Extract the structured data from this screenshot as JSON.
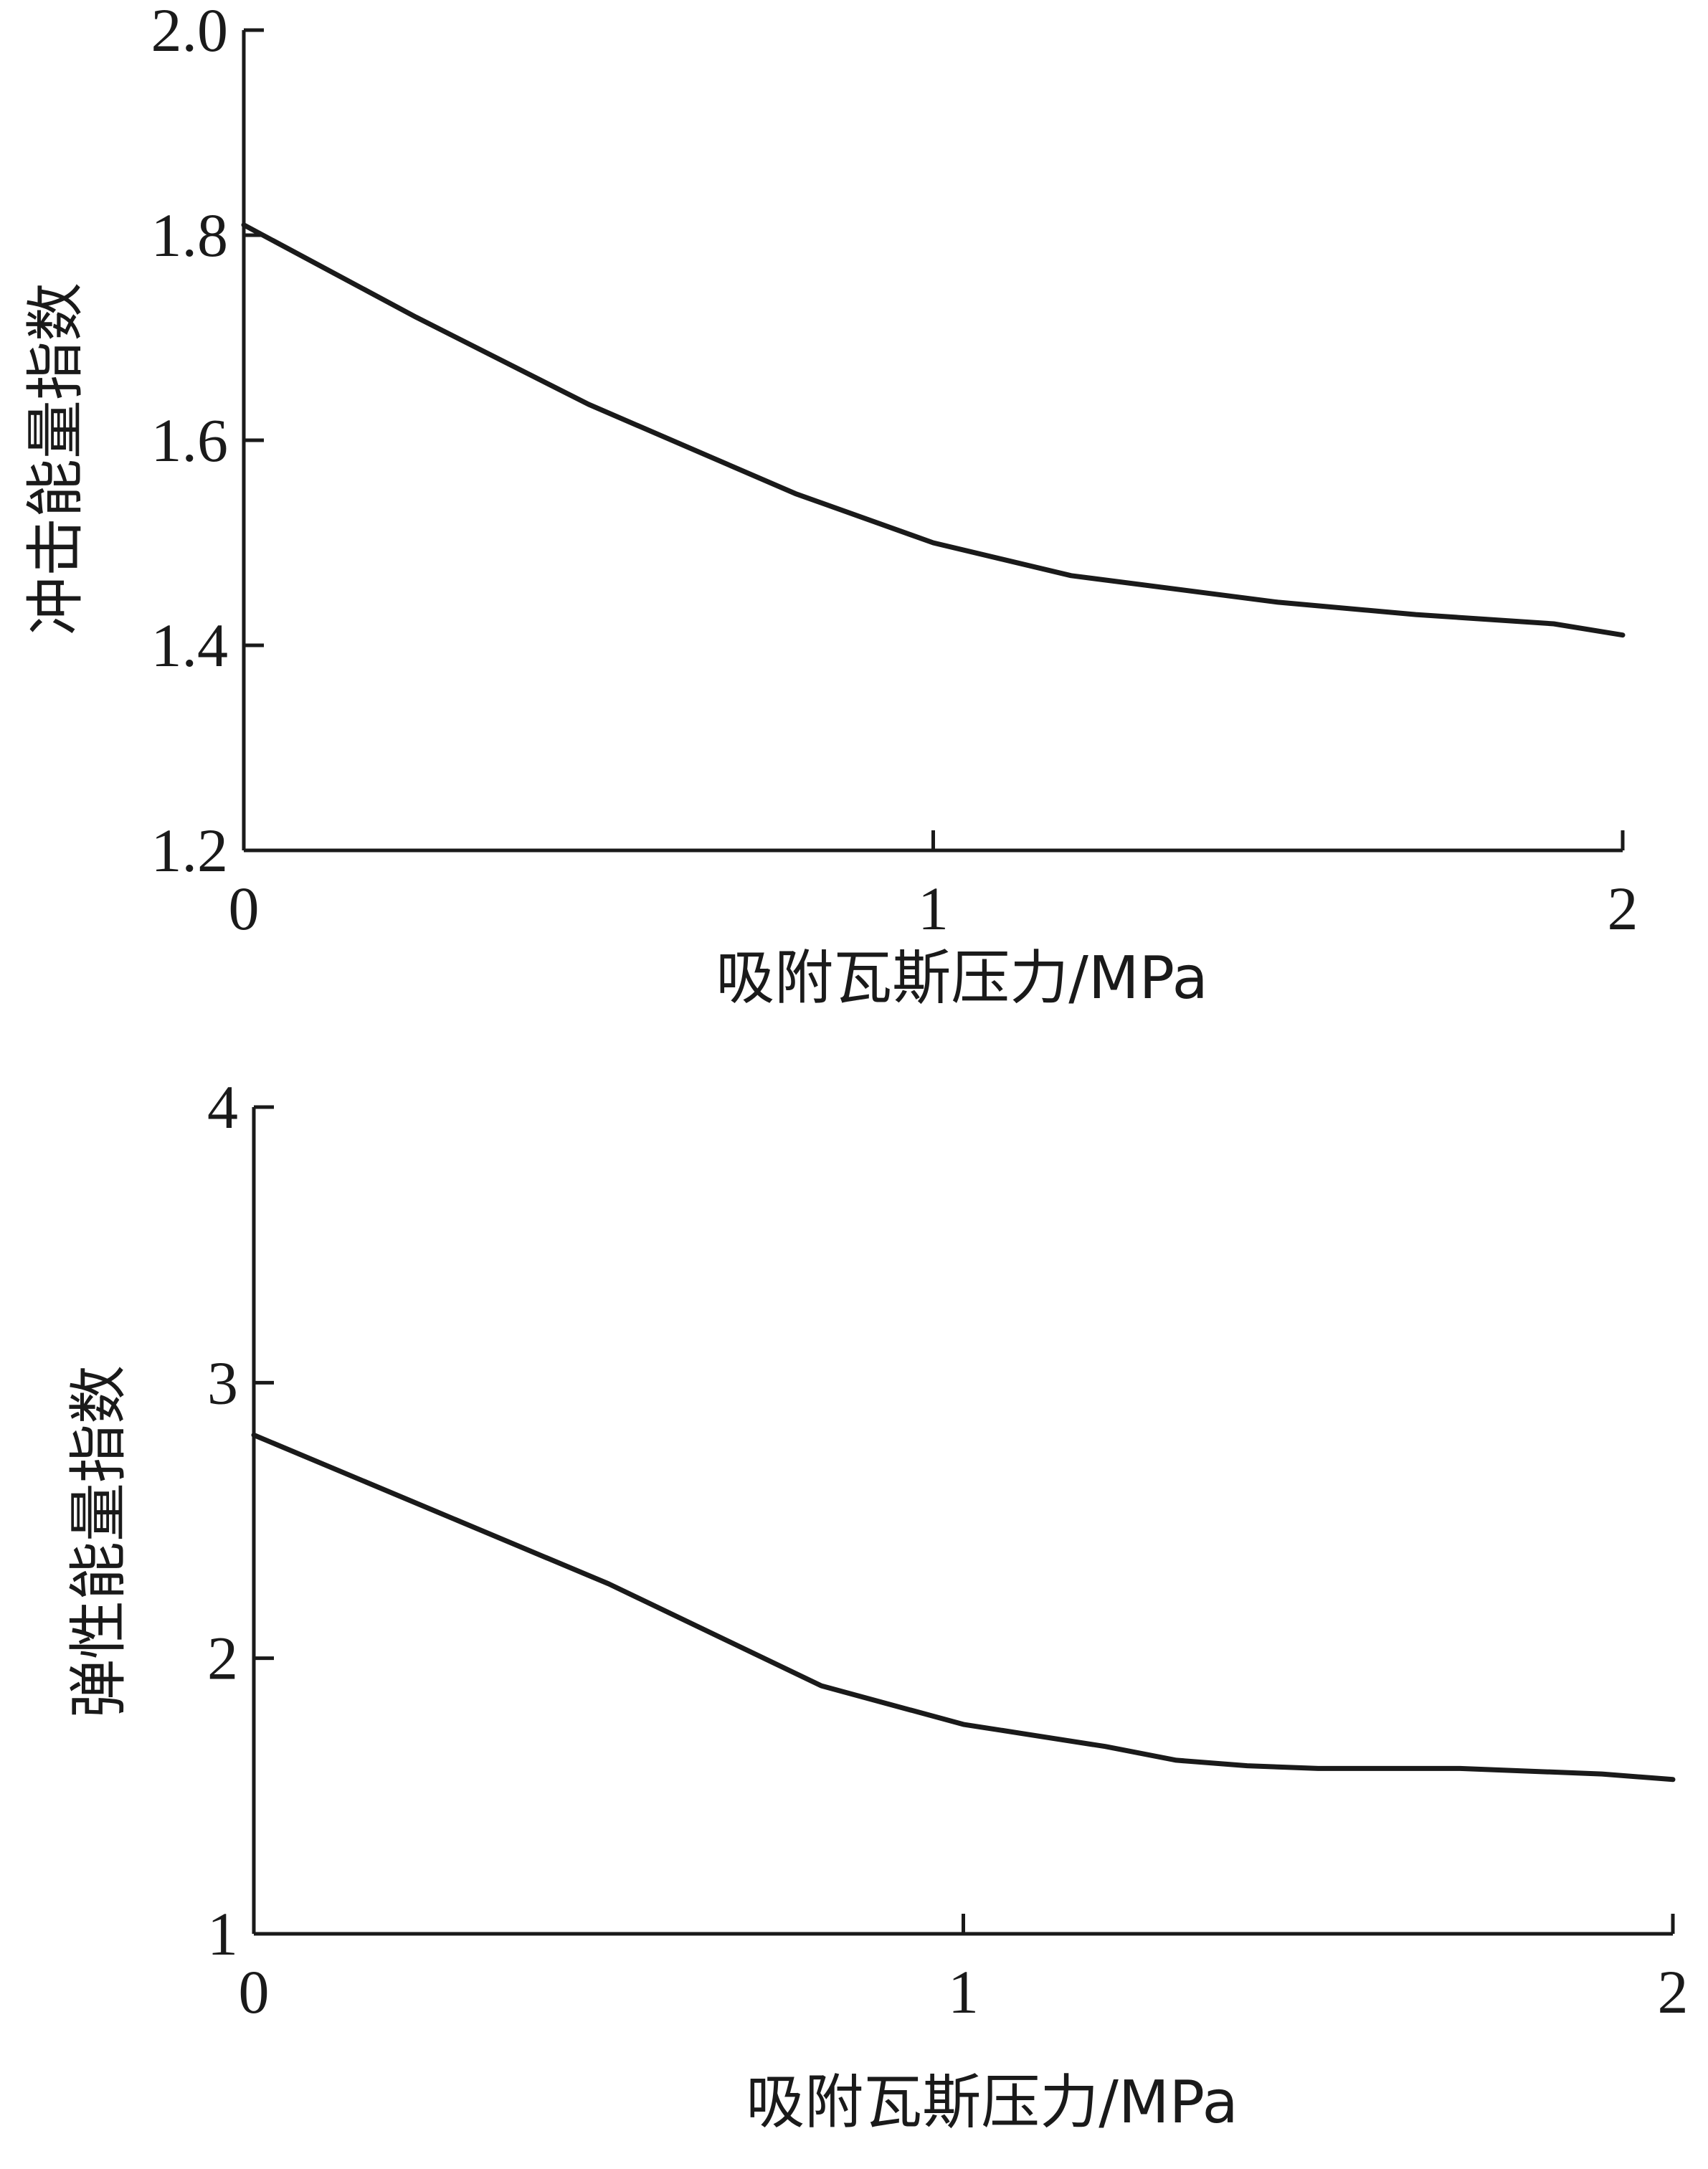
{
  "chart_data": [
    {
      "type": "line",
      "xlabel": "吸附瓦斯压力/MPa",
      "ylabel": "冲击能量指数",
      "xlim": [
        0,
        2
      ],
      "ylim": [
        1.2,
        2.0
      ],
      "xticks": [
        0,
        1,
        2
      ],
      "xtick_labels": [
        "0",
        "1",
        "2"
      ],
      "yticks": [
        1.2,
        1.4,
        1.6,
        1.8,
        2.0
      ],
      "ytick_labels": [
        "1.2",
        "1.4",
        "1.6",
        "1.8",
        "2.0"
      ],
      "grid": false,
      "series": [
        {
          "x": [
            0,
            0.25,
            0.5,
            0.8,
            1.0,
            1.2,
            1.5,
            1.7,
            1.9,
            2.0
          ],
          "y": [
            1.81,
            1.72,
            1.635,
            1.548,
            1.5,
            1.468,
            1.442,
            1.43,
            1.421,
            1.41
          ]
        }
      ]
    },
    {
      "type": "line",
      "xlabel": "吸附瓦斯压力/MPa",
      "ylabel": "弹性能量指数",
      "xlim": [
        0,
        2
      ],
      "ylim": [
        1,
        4
      ],
      "xticks": [
        0,
        1,
        2
      ],
      "xtick_labels": [
        "0",
        "1",
        "2"
      ],
      "yticks": [
        1,
        2,
        3,
        4
      ],
      "ytick_labels": [
        "1",
        "2",
        "3",
        "4"
      ],
      "grid": false,
      "series": [
        {
          "x": [
            0,
            0.25,
            0.5,
            0.8,
            1.0,
            1.2,
            1.3,
            1.4,
            1.5,
            1.7,
            1.9,
            2.0
          ],
          "y": [
            2.81,
            2.54,
            2.27,
            1.9,
            1.76,
            1.68,
            1.63,
            1.61,
            1.6,
            1.6,
            1.58,
            1.56
          ]
        }
      ]
    }
  ]
}
